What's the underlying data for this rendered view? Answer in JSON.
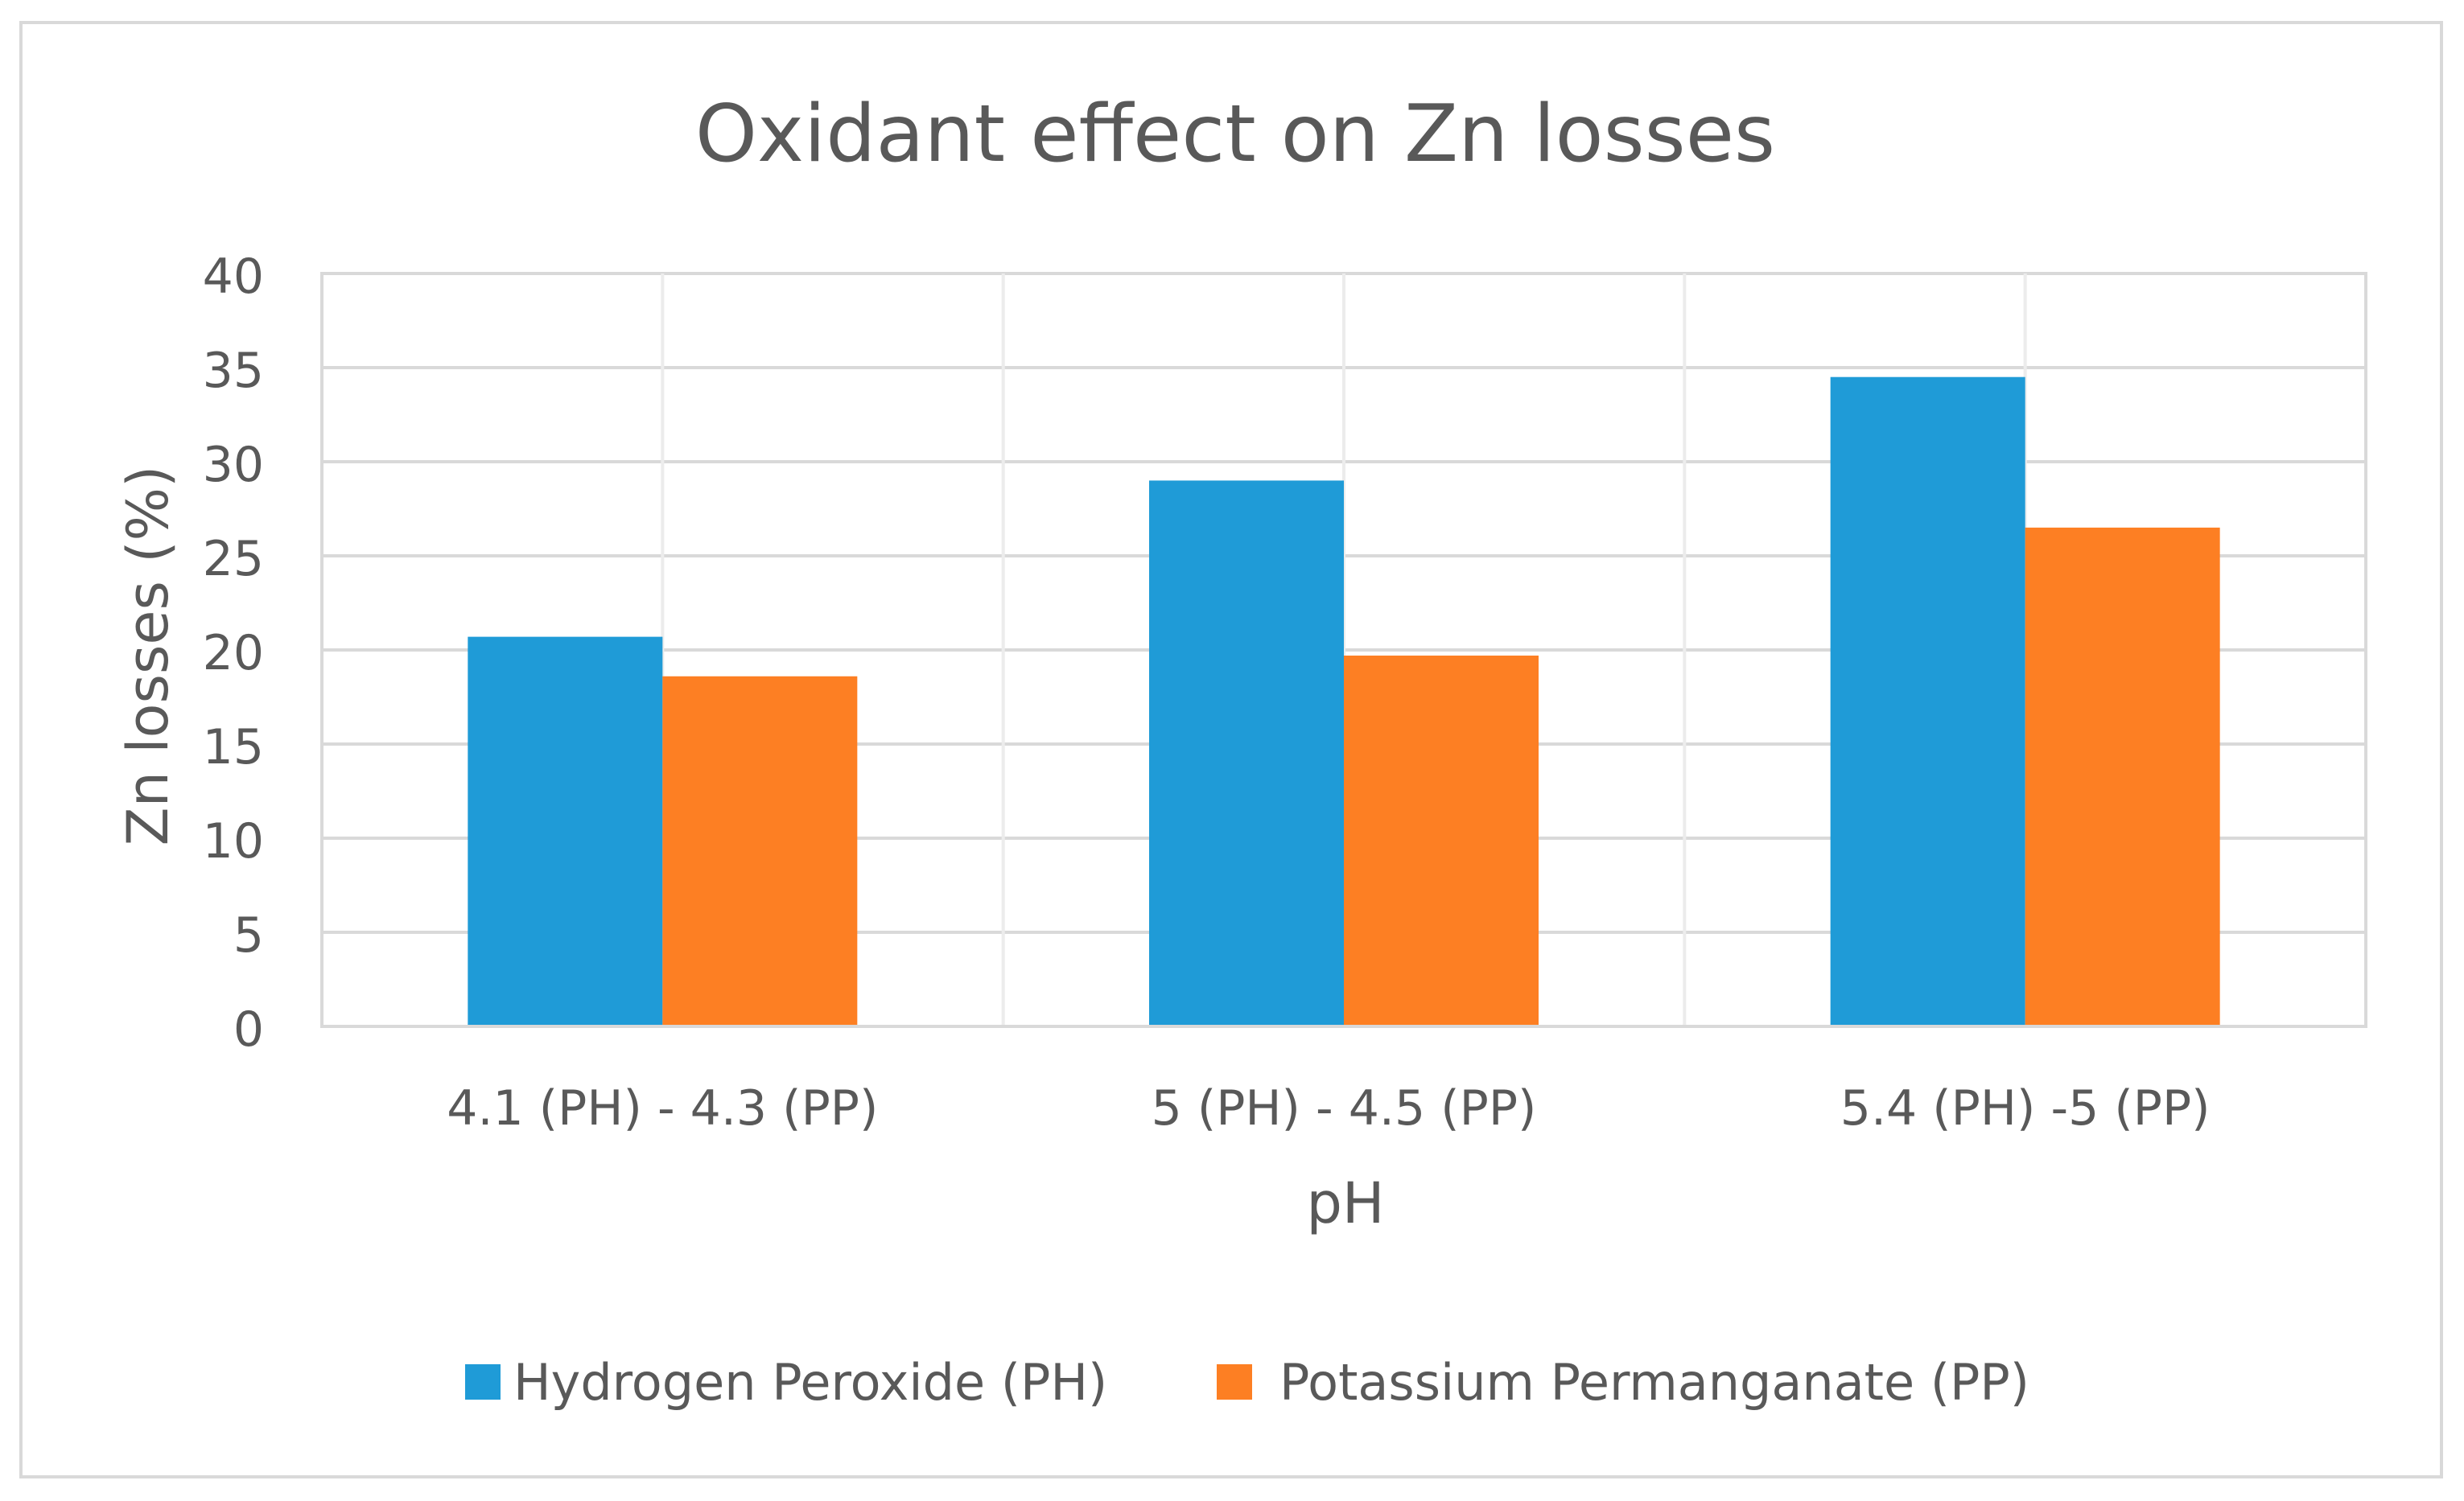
{
  "chart_data": {
    "type": "bar",
    "title": "Oxidant effect on Zn losses",
    "xlabel": "pH",
    "ylabel": "Zn losses (%)",
    "ylim": [
      0,
      40
    ],
    "yticks": [
      0,
      5,
      10,
      15,
      20,
      25,
      30,
      35,
      40
    ],
    "categories": [
      "4.1 (PH) - 4.3 (PP)",
      "5 (PH) - 4.5 (PP)",
      "5.4 (PH) -5 (PP)"
    ],
    "series": [
      {
        "name": "Hydrogen Peroxide (PH)",
        "color": "#1f9bd7",
        "values": [
          20.7,
          29.0,
          34.5
        ]
      },
      {
        "name": "Potassium Permanganate (PP)",
        "color": "#fd7f23",
        "values": [
          18.6,
          19.7,
          26.5
        ]
      }
    ],
    "grid": true,
    "legend_position": "bottom"
  }
}
